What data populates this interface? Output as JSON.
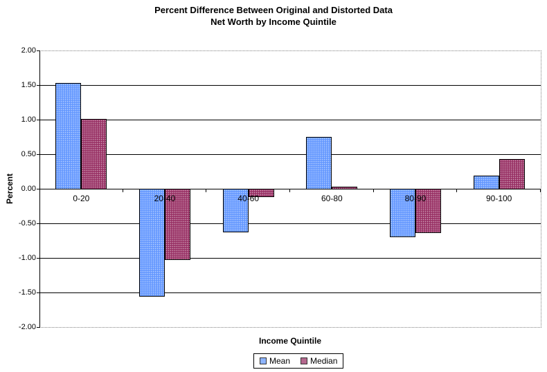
{
  "title": {
    "line1": "Percent Difference Between Original and Distorted Data",
    "line2": "Net Worth by Income Quintile"
  },
  "chart_data": {
    "type": "bar",
    "title": "Percent Difference Between Original and Distorted Data",
    "subtitle": "Net Worth by Income Quintile",
    "xlabel": "Income Quintile",
    "ylabel": "Percent",
    "categories": [
      "0-20",
      "20-40",
      "40-60",
      "60-80",
      "80-90",
      "90-100"
    ],
    "series": [
      {
        "name": "Mean",
        "color": "#6699FF",
        "values": [
          1.53,
          -1.55,
          -0.62,
          0.75,
          -0.69,
          0.19
        ]
      },
      {
        "name": "Median",
        "color": "#993366",
        "values": [
          1.01,
          -1.02,
          -0.11,
          0.03,
          -0.63,
          0.43
        ]
      }
    ],
    "ylim": [
      -2.0,
      2.0
    ],
    "ytick_step": 0.5,
    "ytick_labels": [
      "2.00",
      "1.50",
      "1.00",
      "0.50",
      "0.00",
      "-0.50",
      "-1.00",
      "-1.50",
      "-2.00"
    ],
    "grid": true,
    "legend_position": "bottom"
  }
}
